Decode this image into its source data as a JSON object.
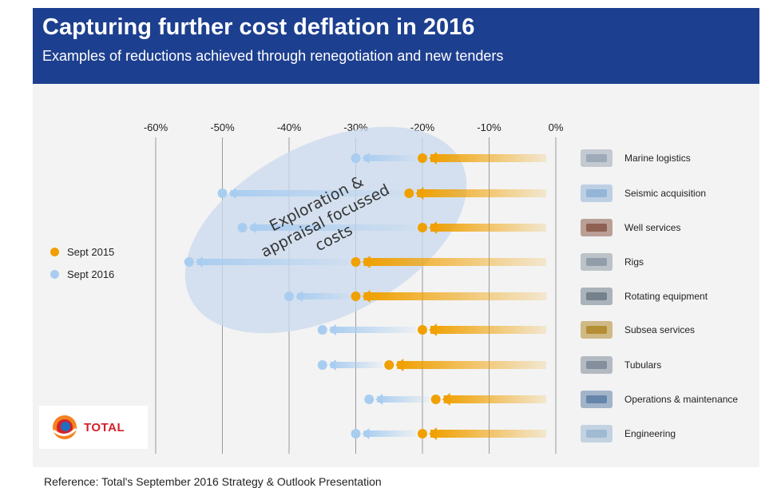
{
  "header": {
    "title": "Capturing further cost deflation in 2016",
    "subtitle": "Examples of reductions achieved through renegotiation and new tenders"
  },
  "colors": {
    "header_bg": "#1d3f8f",
    "sept2015": "#f0a000",
    "sept2016": "#a9cdf0",
    "ellipse": "#c9d9ee"
  },
  "chart_data": {
    "type": "scatter",
    "x_ticks": [
      "-60%",
      "-50%",
      "-40%",
      "-30%",
      "-20%",
      "-10%",
      "0%"
    ],
    "xlim": [
      -60,
      0
    ],
    "categories": [
      "Marine logistics",
      "Seismic acquisition",
      "Well services",
      "Rigs",
      "Rotating equipment",
      "Subsea services",
      "Tubulars",
      "Operations & maintenance",
      "Engineering"
    ],
    "series": [
      {
        "name": "Sept 2015",
        "values": [
          -20,
          -22,
          -20,
          -30,
          -30,
          -20,
          -25,
          -18,
          -20
        ]
      },
      {
        "name": "Sept 2016",
        "values": [
          -30,
          -50,
          -47,
          -55,
          -40,
          -35,
          -35,
          -28,
          -30
        ]
      }
    ],
    "legend_position": "left",
    "annotation": {
      "lines": [
        "Exploration &",
        "appraisal focussed",
        "costs"
      ]
    }
  },
  "logo": {
    "text": "TOTAL"
  },
  "footer": {
    "text": "Reference: Total's September 2016 Strategy & Outlook Presentation"
  }
}
